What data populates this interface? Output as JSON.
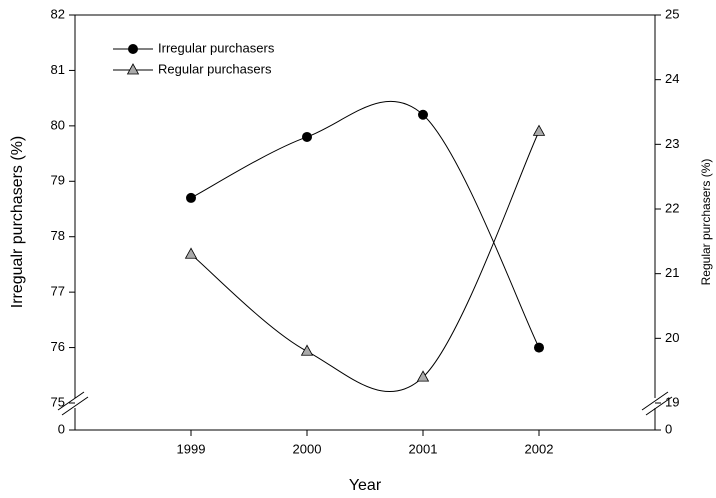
{
  "chart_data": {
    "type": "line",
    "x_label": "Year",
    "y_label": "Irregualr purchasers (%)",
    "y2_label": "Regular purchasers (%)",
    "x": [
      1999,
      2000,
      2001,
      2002
    ],
    "xlim": [
      1998,
      2003
    ],
    "xticks": [
      1999,
      2000,
      2001,
      2002
    ],
    "ylim": [
      75,
      82
    ],
    "yticks": [
      0,
      75,
      76,
      77,
      78,
      79,
      80,
      81,
      82
    ],
    "y2lim": [
      19,
      25
    ],
    "y2ticks": [
      0,
      19,
      20,
      21,
      22,
      23,
      24,
      25
    ],
    "axis_break": true,
    "smooth": true,
    "legend": "upper left",
    "series": [
      {
        "name": "Irregular purchasers",
        "color": "#000000",
        "marker": "circle",
        "values": [
          78.7,
          79.8,
          80.2,
          76.0
        ]
      },
      {
        "name": "Regular purchasers",
        "color": "#aaaaaa",
        "marker": "triangle",
        "axis": "y2",
        "values": [
          21.3,
          19.8,
          19.4,
          23.2
        ]
      }
    ]
  }
}
